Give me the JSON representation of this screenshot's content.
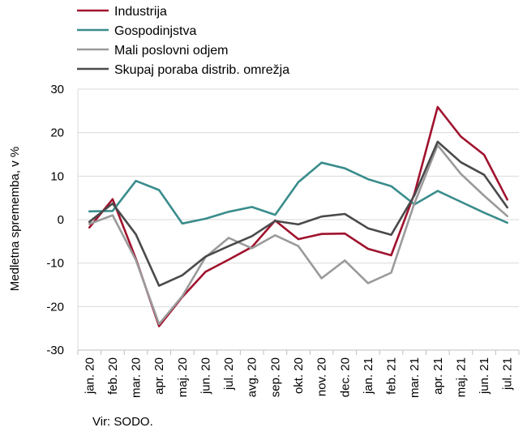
{
  "chart_data": {
    "type": "line",
    "title": "",
    "xlabel": "",
    "ylabel": "Medletna sprememba, v %",
    "ylim": [
      -30,
      30
    ],
    "yticks": [
      -30,
      -20,
      -10,
      0,
      10,
      20,
      30
    ],
    "grid": "horizontal",
    "legend_position": "top-left",
    "categories": [
      "jan. 20",
      "feb. 20",
      "mar. 20",
      "apr. 20",
      "maj. 20",
      "jun. 20",
      "jul. 20",
      "avg. 20",
      "sep. 20",
      "okt. 20",
      "nov. 20",
      "dec. 20",
      "jan. 21",
      "feb. 21",
      "mar. 21",
      "apr. 21",
      "maj. 21",
      "jun. 21",
      "jul. 21"
    ],
    "series": [
      {
        "name": "Industrija",
        "color": "#a0122d",
        "values": [
          -1.8,
          4.7,
          -9.0,
          -24.5,
          -17.8,
          -12.0,
          -9.2,
          -6.3,
          -0.2,
          -4.5,
          -3.3,
          -3.2,
          -6.7,
          -8.2,
          6.0,
          25.9,
          19.1,
          14.9,
          4.6
        ]
      },
      {
        "name": "Gospodinjstva",
        "color": "#3a8c8c",
        "values": [
          1.9,
          2.0,
          8.9,
          6.8,
          -0.9,
          0.2,
          1.8,
          2.9,
          1.1,
          8.6,
          13.1,
          11.8,
          9.3,
          7.7,
          3.5,
          6.6,
          4.1,
          1.6,
          -0.7
        ]
      },
      {
        "name": "Mali poslovni odjem",
        "color": "#9a9a9a",
        "values": [
          -1.0,
          1.0,
          -9.3,
          -24.0,
          -17.6,
          -8.6,
          -4.2,
          -6.6,
          -3.6,
          -6.1,
          -13.5,
          -9.4,
          -14.6,
          -12.2,
          3.8,
          17.1,
          10.5,
          5.5,
          0.8
        ]
      },
      {
        "name": "Skupaj poraba distrib. omrežja",
        "color": "#4a4a4c",
        "values": [
          -0.5,
          3.7,
          -3.4,
          -15.2,
          -12.8,
          -8.5,
          -6.1,
          -3.8,
          -0.3,
          -1.1,
          0.7,
          1.3,
          -2.0,
          -3.5,
          5.6,
          17.9,
          13.2,
          10.3,
          2.8
        ]
      }
    ]
  },
  "source": "Vir: SODO."
}
